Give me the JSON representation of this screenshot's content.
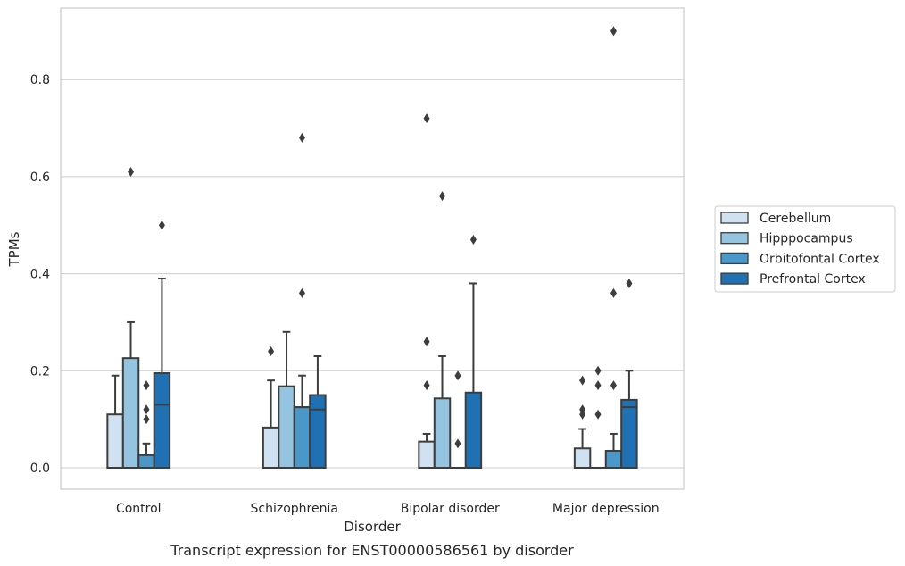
{
  "caption": "Transcript expression for ENST00000586561 by disorder",
  "chart_data": {
    "type": "box",
    "xlabel": "Disorder",
    "ylabel": "TPMs",
    "ylim": [
      -0.045,
      0.95
    ],
    "yticks": [
      0.0,
      0.2,
      0.4,
      0.6,
      0.8
    ],
    "ytick_labels": [
      "0.0",
      "0.2",
      "0.4",
      "0.6",
      "0.8"
    ],
    "grid": "horizontal",
    "legend_position": "right",
    "categories": [
      "Control",
      "Schizophrenia",
      "Bipolar disorder",
      "Major depression"
    ],
    "series": [
      {
        "name": "Cerebellum",
        "color": "#d0e1f2",
        "boxes": [
          {
            "q1": 0.0,
            "median": 0.0,
            "q3": 0.11,
            "whisker_low": 0.0,
            "whisker_high": 0.19,
            "outliers": []
          },
          {
            "q1": 0.0,
            "median": 0.0,
            "q3": 0.083,
            "whisker_low": 0.0,
            "whisker_high": 0.18,
            "outliers": [
              0.24
            ]
          },
          {
            "q1": 0.0,
            "median": 0.0,
            "q3": 0.054,
            "whisker_low": 0.0,
            "whisker_high": 0.07,
            "outliers": [
              0.17,
              0.26,
              0.72
            ]
          },
          {
            "q1": 0.0,
            "median": 0.0,
            "q3": 0.04,
            "whisker_low": 0.0,
            "whisker_high": 0.08,
            "outliers": [
              0.11,
              0.12,
              0.18
            ]
          }
        ]
      },
      {
        "name": "Hipppocampus",
        "color": "#94c4df",
        "boxes": [
          {
            "q1": 0.0,
            "median": 0.0,
            "q3": 0.226,
            "whisker_low": 0.0,
            "whisker_high": 0.3,
            "outliers": [
              0.61
            ]
          },
          {
            "q1": 0.0,
            "median": 0.0,
            "q3": 0.168,
            "whisker_low": 0.0,
            "whisker_high": 0.28,
            "outliers": []
          },
          {
            "q1": 0.0,
            "median": 0.0,
            "q3": 0.143,
            "whisker_low": 0.0,
            "whisker_high": 0.23,
            "outliers": [
              0.56
            ]
          },
          {
            "q1": 0.0,
            "median": 0.0,
            "q3": 0.0,
            "whisker_low": 0.0,
            "whisker_high": 0.0,
            "outliers": [
              0.11,
              0.17,
              0.2
            ]
          }
        ]
      },
      {
        "name": "Orbitofontal Cortex",
        "color": "#4a98c9",
        "boxes": [
          {
            "q1": 0.0,
            "median": 0.0,
            "q3": 0.026,
            "whisker_low": 0.0,
            "whisker_high": 0.05,
            "outliers": [
              0.1,
              0.12,
              0.17
            ]
          },
          {
            "q1": 0.0,
            "median": 0.125,
            "q3": 0.125,
            "whisker_low": 0.0,
            "whisker_high": 0.19,
            "outliers": [
              0.36,
              0.68
            ]
          },
          {
            "q1": 0.0,
            "median": 0.0,
            "q3": 0.0,
            "whisker_low": 0.0,
            "whisker_high": 0.0,
            "outliers": [
              0.05,
              0.19
            ]
          },
          {
            "q1": 0.0,
            "median": 0.0,
            "q3": 0.035,
            "whisker_low": 0.0,
            "whisker_high": 0.07,
            "outliers": [
              0.17,
              0.36,
              0.9
            ]
          }
        ]
      },
      {
        "name": "Prefrontal Cortex",
        "color": "#2070b4",
        "boxes": [
          {
            "q1": 0.0,
            "median": 0.13,
            "q3": 0.195,
            "whisker_low": 0.0,
            "whisker_high": 0.39,
            "outliers": [
              0.5
            ]
          },
          {
            "q1": 0.0,
            "median": 0.12,
            "q3": 0.15,
            "whisker_low": 0.0,
            "whisker_high": 0.23,
            "outliers": []
          },
          {
            "q1": 0.0,
            "median": 0.0,
            "q3": 0.155,
            "whisker_low": 0.0,
            "whisker_high": 0.38,
            "outliers": [
              0.47
            ]
          },
          {
            "q1": 0.0,
            "median": 0.125,
            "q3": 0.14,
            "whisker_low": 0.0,
            "whisker_high": 0.2,
            "outliers": [
              0.38
            ]
          }
        ]
      }
    ]
  }
}
